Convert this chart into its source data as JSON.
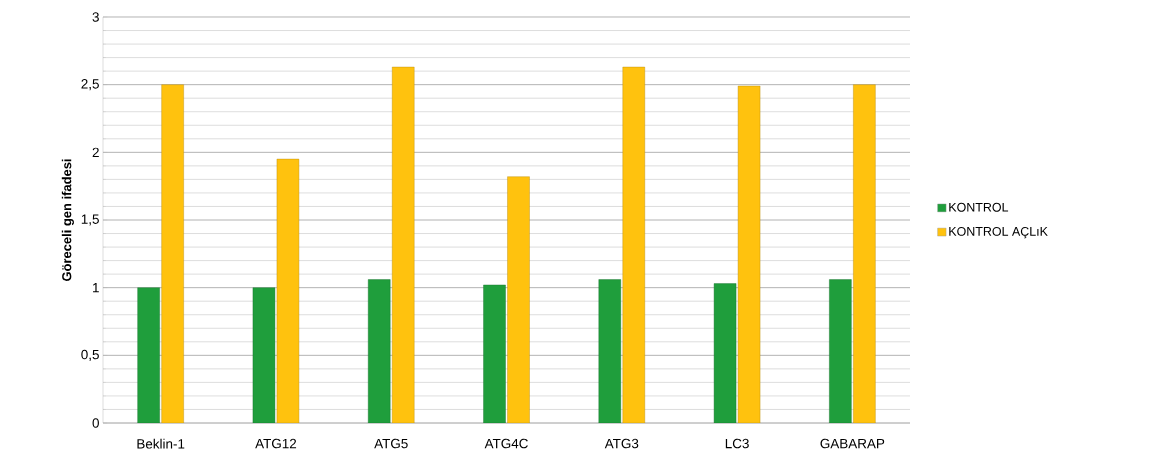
{
  "chart_data": {
    "type": "bar",
    "ylabel": "**Göreceli gen ifadesi**",
    "categories": [
      "Beklin-1",
      "ATG12",
      "ATG5",
      "ATG4C",
      "ATG3",
      "LC3",
      "GABARAP"
    ],
    "series": [
      {
        "name": "KONTROL",
        "color": "#1f9e3c",
        "values": [
          1.0,
          1.0,
          1.06,
          1.02,
          1.06,
          1.03,
          1.06
        ]
      },
      {
        "name": "KONTROL AÇLıK",
        "color": "#ffc20e",
        "values": [
          2.5,
          1.95,
          2.63,
          1.82,
          2.63,
          2.49,
          2.5
        ]
      }
    ],
    "ylim": [
      0,
      3
    ],
    "yticks": [
      0,
      {
        "value": 0.5,
        "label": "0,5"
      },
      1,
      {
        "value": 1.5,
        "label": "1,5"
      },
      2,
      {
        "value": 2.5,
        "label": "2,5"
      },
      3
    ],
    "grid": "y",
    "legend": "right"
  }
}
